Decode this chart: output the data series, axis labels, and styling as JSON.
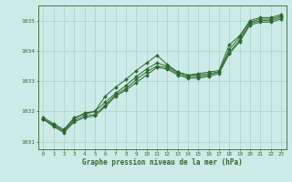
{
  "x": [
    0,
    1,
    2,
    3,
    4,
    5,
    6,
    7,
    8,
    9,
    10,
    11,
    12,
    13,
    14,
    15,
    16,
    17,
    18,
    19,
    20,
    21,
    22,
    23
  ],
  "line1": [
    1031.8,
    1031.6,
    1031.4,
    1031.8,
    1031.9,
    1032.0,
    1032.5,
    1032.8,
    1033.05,
    1033.35,
    1033.6,
    1033.85,
    1033.55,
    1033.3,
    1033.2,
    1033.25,
    1033.3,
    1033.35,
    1034.2,
    1034.5,
    1035.0,
    1035.1,
    1035.1,
    1035.2
  ],
  "line2": [
    1031.75,
    1031.55,
    1031.35,
    1031.75,
    1031.95,
    1032.0,
    1032.3,
    1032.6,
    1032.85,
    1033.15,
    1033.4,
    1033.6,
    1033.5,
    1033.3,
    1033.2,
    1033.2,
    1033.25,
    1033.3,
    1034.05,
    1034.45,
    1034.95,
    1035.05,
    1035.05,
    1035.15
  ],
  "line3": [
    1031.75,
    1031.55,
    1031.35,
    1031.7,
    1031.85,
    1031.9,
    1032.2,
    1032.55,
    1032.75,
    1033.05,
    1033.3,
    1033.5,
    1033.45,
    1033.25,
    1033.15,
    1033.15,
    1033.2,
    1033.3,
    1033.95,
    1034.35,
    1034.9,
    1035.0,
    1035.0,
    1035.1
  ],
  "line4": [
    1031.75,
    1031.5,
    1031.3,
    1031.65,
    1031.8,
    1031.85,
    1032.15,
    1032.5,
    1032.7,
    1032.95,
    1033.2,
    1033.45,
    1033.4,
    1033.2,
    1033.1,
    1033.1,
    1033.15,
    1033.25,
    1033.9,
    1034.3,
    1034.85,
    1034.95,
    1034.95,
    1035.05
  ],
  "bg_color": "#cceae7",
  "line_color": "#2d6a2d",
  "marker_color": "#2d6a2d",
  "grid_color": "#aad4ce",
  "xlabel": "Graphe pression niveau de la mer (hPa)",
  "ylim": [
    1030.75,
    1035.5
  ],
  "yticks": [
    1031,
    1032,
    1033,
    1034,
    1035
  ],
  "xticks": [
    0,
    1,
    2,
    3,
    4,
    5,
    6,
    7,
    8,
    9,
    10,
    11,
    12,
    13,
    14,
    15,
    16,
    17,
    18,
    19,
    20,
    21,
    22,
    23
  ],
  "tick_color": "#2d6a2d",
  "label_color": "#2d6a2d"
}
